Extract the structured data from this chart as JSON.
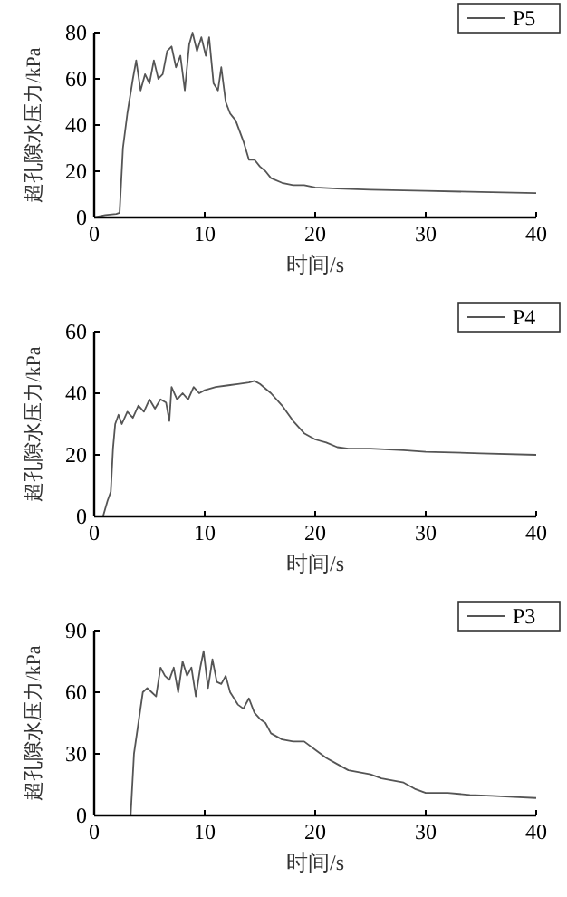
{
  "chart_data": [
    {
      "type": "line",
      "xlabel": "时间/s",
      "ylabel": "超孔隙水压力/kPa",
      "xlim": [
        0,
        40
      ],
      "xticks": [
        0,
        10,
        20,
        30,
        40
      ],
      "ylim": [
        0,
        80
      ],
      "yticks": [
        0,
        20,
        40,
        60,
        80
      ],
      "legend": "top right",
      "grid": false,
      "series": [
        {
          "name": "P5",
          "color": "#555555",
          "x": [
            0,
            1,
            2,
            2.3,
            2.6,
            3,
            3.5,
            3.8,
            4.2,
            4.6,
            5,
            5.4,
            5.8,
            6.2,
            6.6,
            7,
            7.4,
            7.8,
            8.2,
            8.6,
            8.9,
            9.3,
            9.7,
            10.1,
            10.4,
            10.8,
            11.2,
            11.5,
            11.9,
            12.3,
            12.8,
            13.5,
            14,
            14.5,
            15,
            15.5,
            16,
            17,
            18,
            19,
            20,
            22,
            25,
            30,
            35,
            40
          ],
          "values": [
            0,
            1,
            1.5,
            2,
            30,
            45,
            60,
            68,
            55,
            62,
            58,
            68,
            60,
            62,
            72,
            74,
            65,
            70,
            55,
            75,
            80,
            72,
            78,
            70,
            78,
            58,
            55,
            65,
            50,
            45,
            42,
            33,
            25,
            25,
            22,
            20,
            17,
            15,
            14,
            14,
            13,
            12.5,
            12,
            11.5,
            11,
            10.5
          ]
        }
      ]
    },
    {
      "type": "line",
      "xlabel": "时间/s",
      "ylabel": "超孔隙水压力/kPa",
      "xlim": [
        0,
        40
      ],
      "xticks": [
        0,
        10,
        20,
        30,
        40
      ],
      "ylim": [
        0,
        60
      ],
      "yticks": [
        0,
        20,
        40,
        60
      ],
      "legend": "top right",
      "grid": false,
      "series": [
        {
          "name": "P4",
          "color": "#555555",
          "x": [
            0,
            0.8,
            1.2,
            1.5,
            1.7,
            1.9,
            2.2,
            2.5,
            3,
            3.5,
            4,
            4.5,
            5,
            5.5,
            6,
            6.5,
            6.8,
            7,
            7.5,
            8,
            8.5,
            9,
            9.5,
            10,
            11,
            12,
            13,
            14,
            14.5,
            15,
            16,
            17,
            18,
            19,
            20,
            21,
            22,
            23,
            25,
            28,
            30,
            35,
            40
          ],
          "values": [
            0,
            0,
            5,
            8,
            22,
            30,
            33,
            30,
            34,
            32,
            36,
            34,
            38,
            35,
            38,
            37,
            31,
            42,
            38,
            40,
            38,
            42,
            40,
            41,
            42,
            42.5,
            43,
            43.5,
            44,
            43,
            40,
            36,
            31,
            27,
            25,
            24,
            22.5,
            22,
            22,
            21.5,
            21,
            20.5,
            20
          ]
        }
      ]
    },
    {
      "type": "line",
      "xlabel": "时间/s",
      "ylabel": "超孔隙水压力/kPa",
      "xlim": [
        0,
        40
      ],
      "xticks": [
        0,
        10,
        20,
        30,
        40
      ],
      "ylim": [
        0,
        90
      ],
      "yticks": [
        0,
        30,
        60,
        90
      ],
      "legend": "top right",
      "grid": false,
      "series": [
        {
          "name": "P3",
          "color": "#555555",
          "x": [
            0,
            3,
            3.3,
            3.6,
            4,
            4.4,
            4.8,
            5.2,
            5.6,
            6,
            6.4,
            6.8,
            7.2,
            7.6,
            8,
            8.4,
            8.8,
            9.2,
            9.6,
            9.9,
            10.3,
            10.7,
            11.1,
            11.5,
            11.9,
            12.3,
            13,
            13.5,
            14,
            14.5,
            15,
            15.5,
            16,
            17,
            18,
            19,
            20,
            21,
            22,
            23,
            24,
            25,
            26,
            27,
            28,
            29,
            30,
            32,
            34,
            36,
            38,
            40
          ],
          "values": [
            0,
            0,
            0,
            30,
            45,
            60,
            62,
            60,
            58,
            72,
            68,
            66,
            72,
            60,
            75,
            68,
            72,
            58,
            72,
            80,
            62,
            76,
            65,
            64,
            68,
            60,
            54,
            52,
            57,
            50,
            47,
            45,
            40,
            37,
            36,
            36,
            32,
            28,
            25,
            22,
            21,
            20,
            18,
            17,
            16,
            13,
            11,
            11,
            10,
            9.5,
            9,
            8.5
          ]
        }
      ]
    }
  ]
}
